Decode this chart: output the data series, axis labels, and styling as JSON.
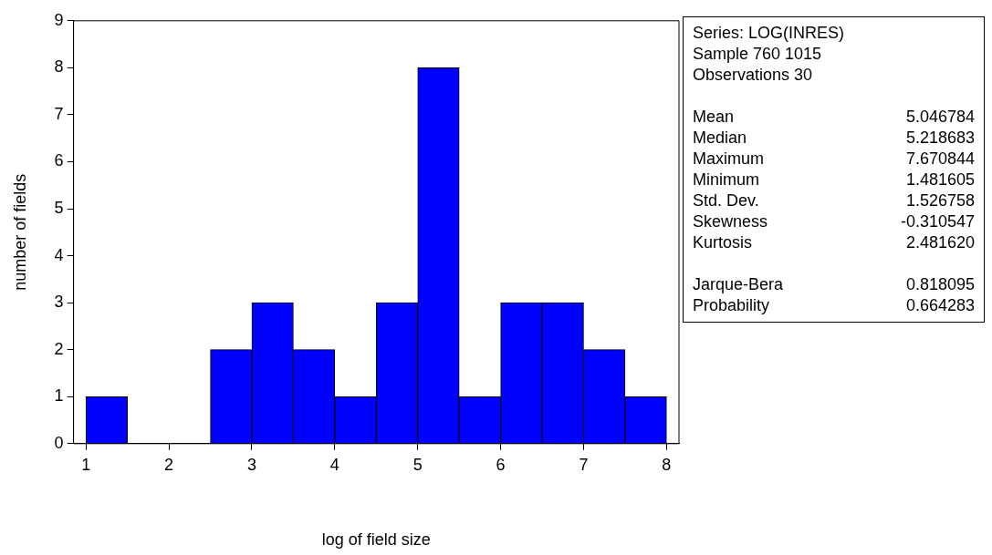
{
  "chart_data": [
    {
      "type": "histogram",
      "xlabel": "log of field size",
      "ylabel": "number of fields",
      "bins": [
        1,
        1.5,
        2,
        2.5,
        3,
        3.5,
        4,
        4.5,
        5,
        5.5,
        6,
        6.5,
        7,
        7.5,
        8
      ],
      "values": [
        1,
        0,
        0,
        2,
        3,
        2,
        1,
        3,
        8,
        1,
        3,
        3,
        2,
        1
      ],
      "color": "#0000ff",
      "xlim": [
        0.85,
        8.15
      ],
      "xticks": [
        1,
        2,
        3,
        4,
        5,
        6,
        7,
        8
      ],
      "ylim": [
        0,
        9
      ],
      "yticks": [
        0,
        1,
        2,
        3,
        4,
        5,
        6,
        7,
        8,
        9
      ]
    },
    {
      "type": "other",
      "title": "Series: LOG(INRES)",
      "annotations": [
        "Sample 760 1015",
        "Observations 30"
      ],
      "categories": [
        "Mean",
        "Median",
        "Maximum",
        "Minimum",
        "Std. Dev.",
        "Skewness",
        "Kurtosis",
        "Jarque-Bera",
        "Probability"
      ],
      "value_labels": [
        "5.046784",
        "5.218683",
        "7.670844",
        "1.481605",
        "1.526758",
        "-0.310547",
        "2.481620",
        "0.818095",
        "0.664283"
      ]
    }
  ]
}
